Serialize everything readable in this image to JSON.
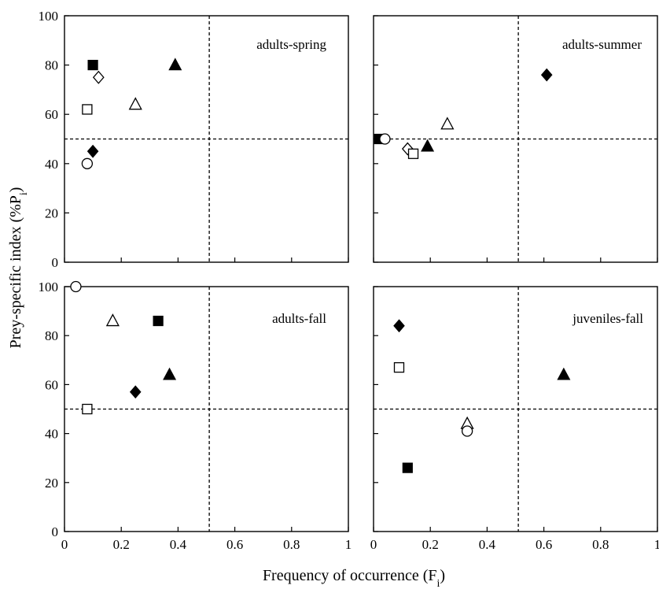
{
  "figure": {
    "ylabel_main": "Prey-specific index (%P",
    "ylabel_sub": "i",
    "ylabel_close": ")",
    "xlabel_main": "Frequency of occurrence (F",
    "xlabel_sub": "i",
    "xlabel_close": ")"
  },
  "chart_data": [
    {
      "type": "scatter",
      "title": "adults-spring",
      "xlim": [
        0,
        1
      ],
      "ylim": [
        0,
        100
      ],
      "x_ticks": [
        "",
        "",
        "",
        "",
        "",
        ""
      ],
      "y_ticks": [
        "0",
        "20",
        "40",
        "60",
        "80",
        "100"
      ],
      "reference_lines": {
        "x": 0.51,
        "y": 50
      },
      "points": [
        {
          "marker": "filled-square",
          "x": 0.1,
          "y": 80
        },
        {
          "marker": "open-diamond",
          "x": 0.12,
          "y": 75
        },
        {
          "marker": "filled-triangle",
          "x": 0.39,
          "y": 80
        },
        {
          "marker": "open-triangle",
          "x": 0.25,
          "y": 64
        },
        {
          "marker": "open-square",
          "x": 0.08,
          "y": 62
        },
        {
          "marker": "filled-diamond",
          "x": 0.1,
          "y": 45
        },
        {
          "marker": "open-circle",
          "x": 0.08,
          "y": 40
        }
      ]
    },
    {
      "type": "scatter",
      "title": "adults-summer",
      "xlim": [
        0,
        1
      ],
      "ylim": [
        0,
        100
      ],
      "x_ticks": [
        "",
        "",
        "",
        "",
        "",
        ""
      ],
      "y_ticks": [
        "",
        "",
        "",
        "",
        "",
        ""
      ],
      "reference_lines": {
        "x": 0.51,
        "y": 50
      },
      "points": [
        {
          "marker": "filled-diamond",
          "x": 0.61,
          "y": 76
        },
        {
          "marker": "open-triangle",
          "x": 0.26,
          "y": 56
        },
        {
          "marker": "filled-square",
          "x": 0.02,
          "y": 50
        },
        {
          "marker": "open-circle",
          "x": 0.04,
          "y": 50
        },
        {
          "marker": "filled-triangle",
          "x": 0.19,
          "y": 47
        },
        {
          "marker": "open-diamond",
          "x": 0.12,
          "y": 46
        },
        {
          "marker": "open-square",
          "x": 0.14,
          "y": 44
        }
      ]
    },
    {
      "type": "scatter",
      "title": "adults-fall",
      "xlim": [
        0,
        1
      ],
      "ylim": [
        0,
        100
      ],
      "x_ticks": [
        "0",
        "0.2",
        "0.4",
        "0.6",
        "0.8",
        "1"
      ],
      "y_ticks": [
        "0",
        "20",
        "40",
        "60",
        "80",
        "100"
      ],
      "reference_lines": {
        "x": 0.51,
        "y": 50
      },
      "points": [
        {
          "marker": "open-circle",
          "x": 0.04,
          "y": 100
        },
        {
          "marker": "open-triangle",
          "x": 0.17,
          "y": 86
        },
        {
          "marker": "filled-square",
          "x": 0.33,
          "y": 86
        },
        {
          "marker": "filled-triangle",
          "x": 0.37,
          "y": 64
        },
        {
          "marker": "filled-diamond",
          "x": 0.25,
          "y": 57
        },
        {
          "marker": "open-square",
          "x": 0.08,
          "y": 50
        }
      ]
    },
    {
      "type": "scatter",
      "title": "juveniles-fall",
      "xlim": [
        0,
        1
      ],
      "ylim": [
        0,
        100
      ],
      "x_ticks": [
        "0",
        "0.2",
        "0.4",
        "0.6",
        "0.8",
        "1"
      ],
      "y_ticks": [
        "",
        "",
        "",
        "",
        "",
        ""
      ],
      "reference_lines": {
        "x": 0.51,
        "y": 50
      },
      "points": [
        {
          "marker": "filled-diamond",
          "x": 0.09,
          "y": 84
        },
        {
          "marker": "open-square",
          "x": 0.09,
          "y": 67
        },
        {
          "marker": "filled-triangle",
          "x": 0.67,
          "y": 64
        },
        {
          "marker": "open-triangle",
          "x": 0.33,
          "y": 44
        },
        {
          "marker": "open-circle",
          "x": 0.33,
          "y": 41
        },
        {
          "marker": "filled-square",
          "x": 0.12,
          "y": 26
        }
      ]
    }
  ]
}
